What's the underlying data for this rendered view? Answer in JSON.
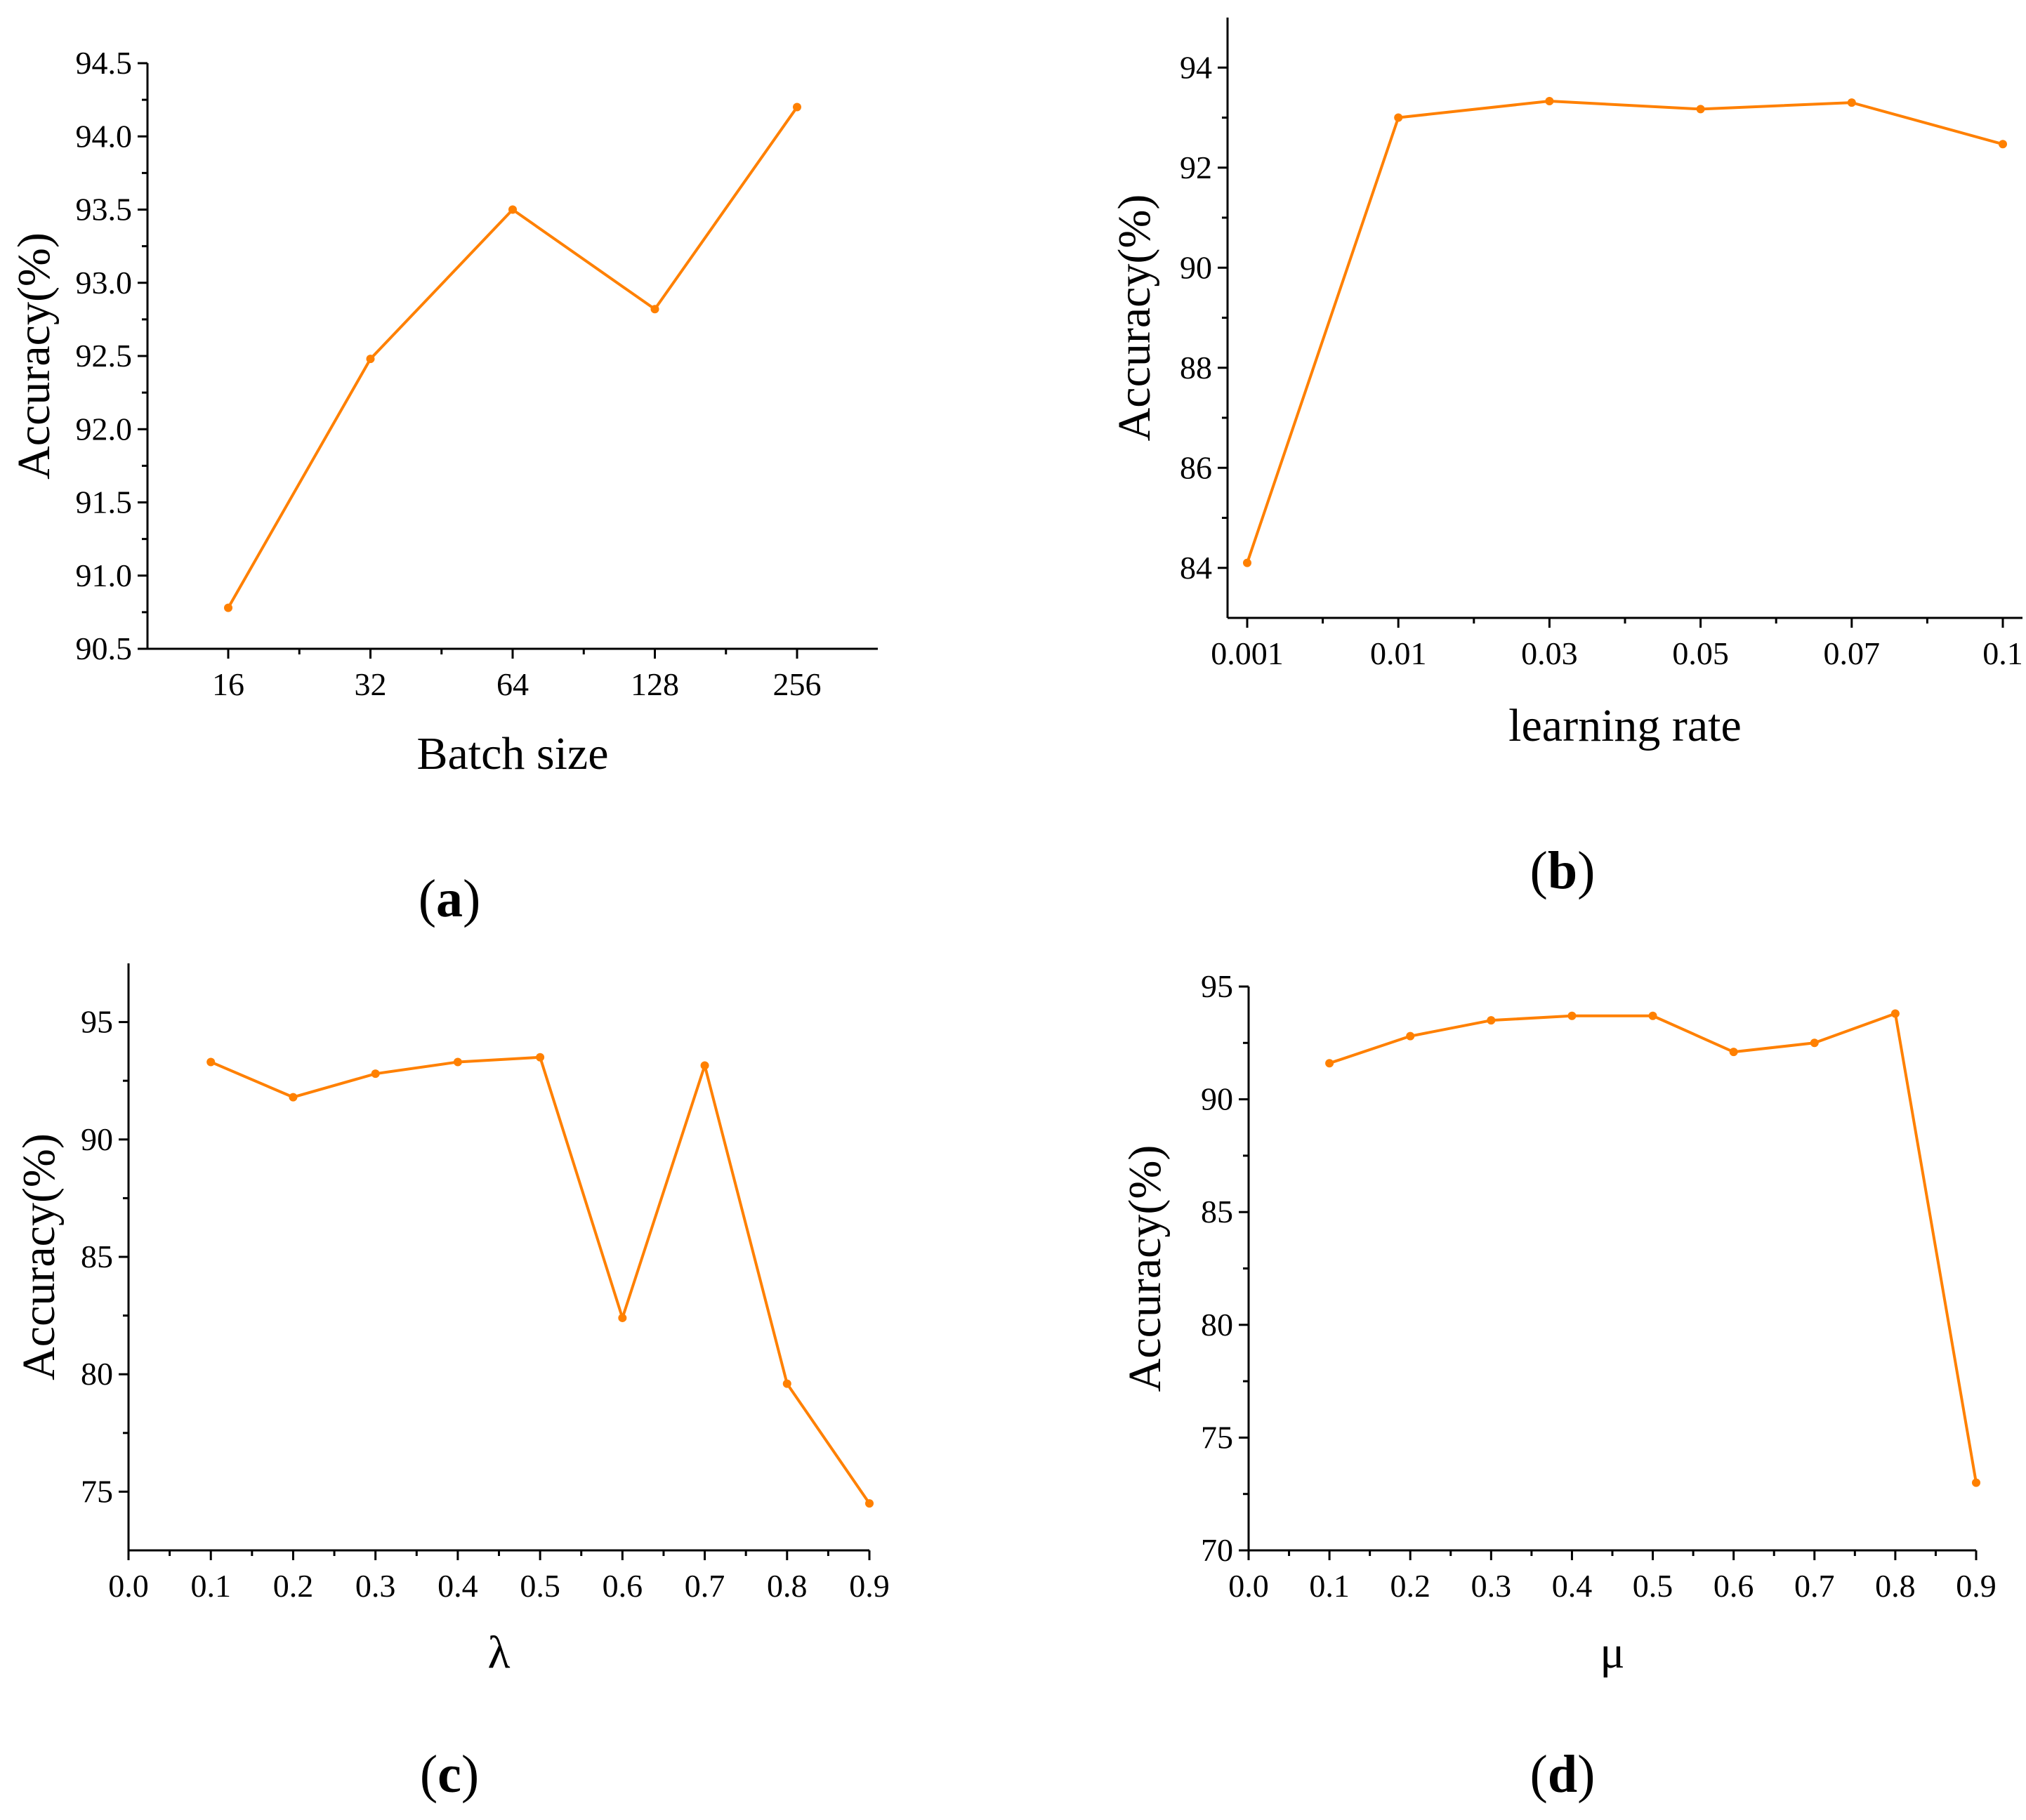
{
  "style": {
    "series_color": "#FF8000"
  },
  "chart_data": [
    {
      "type": "line",
      "panel_label": "a",
      "title": "",
      "xlabel": "Batch size",
      "ylabel": "Accuracy(%)",
      "categories": [
        "16",
        "32",
        "64",
        "128",
        "256"
      ],
      "values": [
        90.78,
        92.48,
        93.5,
        92.82,
        94.2
      ],
      "ylim": [
        90.5,
        94.5
      ],
      "yticks": [
        "90.5",
        "91.0",
        "91.5",
        "92.0",
        "92.5",
        "93.0",
        "93.5",
        "94.0",
        "94.5"
      ],
      "grid": false
    },
    {
      "type": "line",
      "panel_label": "b",
      "title": "",
      "xlabel": "learning rate",
      "ylabel": "Accuracy(%)",
      "categories": [
        "0.001",
        "0.01",
        "0.03",
        "0.05",
        "0.07",
        "0.1"
      ],
      "values": [
        84.1,
        93.0,
        93.33,
        93.17,
        93.3,
        92.47
      ],
      "ylim": [
        83,
        95
      ],
      "yticks": [
        "84",
        "86",
        "88",
        "90",
        "92",
        "94"
      ],
      "grid": false
    },
    {
      "type": "line",
      "panel_label": "c",
      "title": "",
      "xlabel": "λ",
      "ylabel": "Accuracy(%)",
      "x": [
        0.1,
        0.2,
        0.3,
        0.4,
        0.5,
        0.6,
        0.7,
        0.8,
        0.9
      ],
      "values": [
        93.3,
        91.8,
        92.8,
        93.3,
        93.5,
        82.4,
        93.15,
        79.6,
        74.5
      ],
      "xlim": [
        0.0,
        0.9
      ],
      "xticks": [
        "0.0",
        "0.1",
        "0.2",
        "0.3",
        "0.4",
        "0.5",
        "0.6",
        "0.7",
        "0.8",
        "0.9"
      ],
      "ylim": [
        72.5,
        97.5
      ],
      "yticks": [
        "75",
        "80",
        "85",
        "90",
        "95"
      ],
      "grid": false
    },
    {
      "type": "line",
      "panel_label": "d",
      "title": "",
      "xlabel": "μ",
      "ylabel": "Accuracy(%)",
      "x": [
        0.1,
        0.2,
        0.3,
        0.4,
        0.5,
        0.6,
        0.7,
        0.8,
        0.9
      ],
      "values": [
        91.6,
        92.8,
        93.5,
        93.7,
        93.7,
        92.1,
        92.5,
        93.8,
        73.0
      ],
      "xlim": [
        0.0,
        0.9
      ],
      "xticks": [
        "0.0",
        "0.1",
        "0.2",
        "0.3",
        "0.4",
        "0.5",
        "0.6",
        "0.7",
        "0.8",
        "0.9"
      ],
      "ylim": [
        70,
        95
      ],
      "yticks": [
        "70",
        "75",
        "80",
        "85",
        "90",
        "95"
      ],
      "grid": false
    }
  ]
}
